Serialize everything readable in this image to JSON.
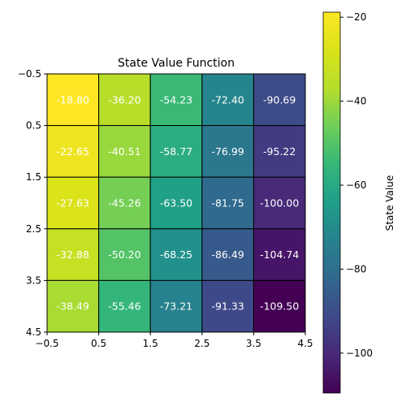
{
  "chart_data": {
    "type": "heatmap",
    "title": "State Value Function",
    "x_ticks": [
      "−0.5",
      "0.5",
      "1.5",
      "2.5",
      "3.5",
      "4.5"
    ],
    "y_ticks": [
      "−0.5",
      "0.5",
      "1.5",
      "2.5",
      "3.5",
      "4.5"
    ],
    "xlim": [
      -0.5,
      4.5
    ],
    "ylim": [
      4.5,
      -0.5
    ],
    "values": [
      [
        -18.8,
        -36.2,
        -54.23,
        -72.4,
        -90.69
      ],
      [
        -22.65,
        -40.51,
        -58.77,
        -76.99,
        -95.22
      ],
      [
        -27.63,
        -45.26,
        -63.5,
        -81.75,
        -100.0
      ],
      [
        -32.88,
        -50.2,
        -68.25,
        -86.49,
        -104.74
      ],
      [
        -38.49,
        -55.46,
        -73.21,
        -91.33,
        -109.5
      ]
    ],
    "cell_labels": [
      [
        "-18.80",
        "-36.20",
        "-54.23",
        "-72.40",
        "-90.69"
      ],
      [
        "-22.65",
        "-40.51",
        "-58.77",
        "-76.99",
        "-95.22"
      ],
      [
        "-27.63",
        "-45.26",
        "-63.50",
        "-81.75",
        "-100.00"
      ],
      [
        "-32.88",
        "-50.20",
        "-68.25",
        "-86.49",
        "-104.74"
      ],
      [
        "-38.49",
        "-55.46",
        "-73.21",
        "-91.33",
        "-109.50"
      ]
    ],
    "colormap": "viridis",
    "color_range": [
      -109.5,
      -18.8
    ],
    "colorbar": {
      "label": "State Value",
      "ticks": [
        -20,
        -40,
        -60,
        -80,
        -100
      ],
      "tick_labels": [
        "−20",
        "−40",
        "−60",
        "−80",
        "−100"
      ]
    },
    "grid": false,
    "cell_label_color": "#ffffff"
  }
}
